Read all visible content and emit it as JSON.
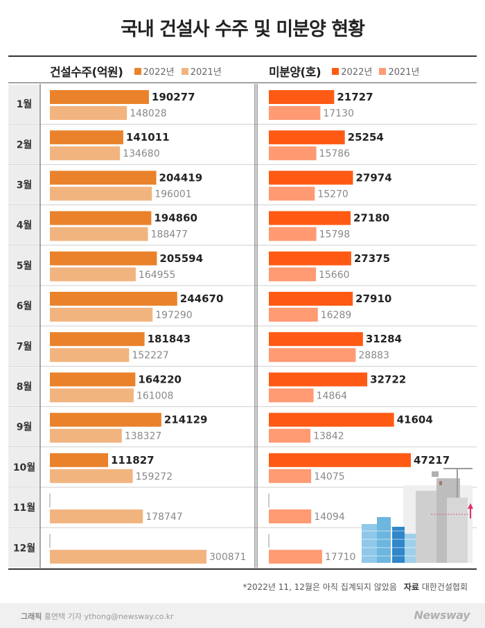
{
  "title": "국내 건설사 수주 및 미분양 현황",
  "colors": {
    "orders_2022": "#E9822A",
    "orders_2021": "#F2B47F",
    "unsold_2022": "#FF5A14",
    "unsold_2021": "#FF9A72",
    "row_label_bg": "#EDEDED"
  },
  "legend": {
    "orders_title": "건설수주(억원)",
    "unsold_title": "미분양(호)",
    "y2022": "2022년",
    "y2021": "2021년"
  },
  "chart_data": [
    {
      "type": "bar",
      "title": "건설수주(억원)",
      "categories": [
        "1월",
        "2월",
        "3월",
        "4월",
        "5월",
        "6월",
        "7월",
        "8월",
        "9월",
        "10월",
        "11월",
        "12월"
      ],
      "series": [
        {
          "name": "2022년",
          "values": [
            190277,
            141011,
            204419,
            194860,
            205594,
            244670,
            181843,
            164220,
            214129,
            111827,
            null,
            null
          ]
        },
        {
          "name": "2021년",
          "values": [
            148028,
            134680,
            196001,
            188477,
            164955,
            197290,
            152227,
            161008,
            138327,
            159272,
            178747,
            300871
          ]
        }
      ],
      "xlim": [
        0,
        300871
      ]
    },
    {
      "type": "bar",
      "title": "미분양(호)",
      "categories": [
        "1월",
        "2월",
        "3월",
        "4월",
        "5월",
        "6월",
        "7월",
        "8월",
        "9월",
        "10월",
        "11월",
        "12월"
      ],
      "series": [
        {
          "name": "2022년",
          "values": [
            21727,
            25254,
            27974,
            27180,
            27375,
            27910,
            31284,
            32722,
            41604,
            47217,
            null,
            null
          ]
        },
        {
          "name": "2021년",
          "values": [
            17130,
            15786,
            15270,
            15798,
            15660,
            16289,
            28883,
            14864,
            13842,
            14075,
            14094,
            17710
          ]
        }
      ],
      "xlim": [
        0,
        47217
      ]
    }
  ],
  "footnote": "*2022년 11, 12월은 아직 집계되지 않았음",
  "source_label": "자료",
  "source": "대한건설협회",
  "credit_label": "그래픽",
  "credit": "홍연택 기자 ythong@newsway.co.kr",
  "logo": "Newsway"
}
